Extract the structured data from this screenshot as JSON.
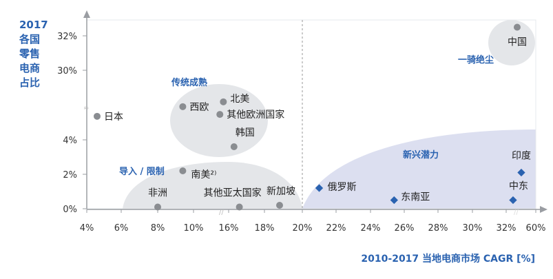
{
  "chart_data": {
    "type": "scatter",
    "title": "",
    "ylabel": [
      "2017",
      "各国",
      "零售",
      "电商",
      "占比"
    ],
    "xlabel": "2010-2017 当地电商市场 CAGR [%]",
    "x_ticks": [
      "4%",
      "6%",
      "8%",
      "10%",
      "16%",
      "18%",
      "20%",
      "22%",
      "24%",
      "26%",
      "28%",
      "30%",
      "32%",
      "60%"
    ],
    "x_tick_values": [
      4,
      6,
      8,
      10,
      16,
      18,
      20,
      22,
      24,
      26,
      28,
      30,
      32,
      60
    ],
    "y_ticks": [
      "0%",
      "2%",
      "4%",
      "30%",
      "32%"
    ],
    "y_tick_values": [
      0,
      2,
      4,
      30,
      32
    ],
    "axis_breaks": "both axes broken",
    "divider_x": 20,
    "groups": [
      {
        "name": "传统成熟",
        "color": "#2a62b0"
      },
      {
        "name": "导入 / 限制",
        "color": "#2a62b0"
      },
      {
        "name": "一骑绝尘",
        "color": "#2a62b0"
      },
      {
        "name": "新兴潜力",
        "color": "#2a62b0"
      }
    ],
    "series": [
      {
        "name": "circle",
        "marker": "circle",
        "color": "#8a8d91",
        "points": [
          {
            "label": "日本",
            "x": 4.6,
            "y": 12.8
          },
          {
            "label": "西欧",
            "x": 9.4,
            "y": 16.4
          },
          {
            "label": "北美",
            "x": 15.1,
            "y": 18.2
          },
          {
            "label": "其他欧洲国家",
            "x": 14.5,
            "y": 13.5
          },
          {
            "label": "韩国",
            "x": 16.3,
            "y": 3.6
          },
          {
            "label": "南美²⁾",
            "x": 9.4,
            "y": 2.2
          },
          {
            "label": "非洲",
            "x": 8.0,
            "y": 0.1
          },
          {
            "label": "其他亚太国家",
            "x": 16.6,
            "y": 0.1
          },
          {
            "label": "新加坡",
            "x": 18.8,
            "y": 0.2
          },
          {
            "label": "中国",
            "x": 42.4,
            "y": 32.5
          }
        ]
      },
      {
        "name": "diamond",
        "marker": "diamond",
        "color": "#2a62b0",
        "points": [
          {
            "label": "俄罗斯",
            "x": 21.0,
            "y": 1.2
          },
          {
            "label": "东南亚",
            "x": 25.4,
            "y": 0.5
          },
          {
            "label": "印度",
            "x": 46.3,
            "y": 2.1
          },
          {
            "label": "中东",
            "x": 38.5,
            "y": 0.5
          }
        ]
      }
    ]
  }
}
